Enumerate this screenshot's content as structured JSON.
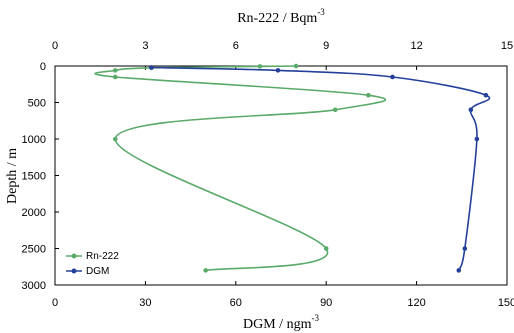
{
  "chart_data": {
    "type": "line",
    "orientation": "depth-profile",
    "x_bottom_label": "DGM / ngm",
    "x_bottom_label_sup": "-3",
    "x_bottom_range": [
      0,
      150
    ],
    "x_bottom_ticks": [
      "0",
      "30",
      "60",
      "90",
      "120",
      "150"
    ],
    "x_top_label": "Rn-222 / Bqm",
    "x_top_label_sup": "-3",
    "x_top_range": [
      0,
      15
    ],
    "x_top_ticks": [
      "0",
      "3",
      "6",
      "9",
      "12",
      "15"
    ],
    "ylabel": "Depth / m",
    "y_range": [
      0,
      3000
    ],
    "y_inverted": true,
    "y_ticks": [
      "0",
      "500",
      "1000",
      "1500",
      "2000",
      "2500",
      "3000"
    ],
    "grid": false,
    "legend_position": "bottom-left",
    "series": [
      {
        "name": "Rn-222",
        "axis": "top",
        "color": "#5aaa6a",
        "points": [
          {
            "value": 8.0,
            "depth": 0
          },
          {
            "value": 6.8,
            "depth": 5
          },
          {
            "value": 3.2,
            "depth": 25
          },
          {
            "value": 2.0,
            "depth": 60
          },
          {
            "value": 2.0,
            "depth": 150
          },
          {
            "value": 10.4,
            "depth": 400
          },
          {
            "value": 9.3,
            "depth": 600
          },
          {
            "value": 2.0,
            "depth": 1000
          },
          {
            "value": 9.0,
            "depth": 2500
          },
          {
            "value": 5.0,
            "depth": 2800
          }
        ]
      },
      {
        "name": "DGM",
        "axis": "bottom",
        "color": "#24409a",
        "points": [
          {
            "value": 32,
            "depth": 20
          },
          {
            "value": 74,
            "depth": 60
          },
          {
            "value": 112,
            "depth": 150
          },
          {
            "value": 143,
            "depth": 400
          },
          {
            "value": 138,
            "depth": 600
          },
          {
            "value": 140,
            "depth": 1000
          },
          {
            "value": 136,
            "depth": 2500
          },
          {
            "value": 134,
            "depth": 2800
          }
        ]
      }
    ]
  }
}
